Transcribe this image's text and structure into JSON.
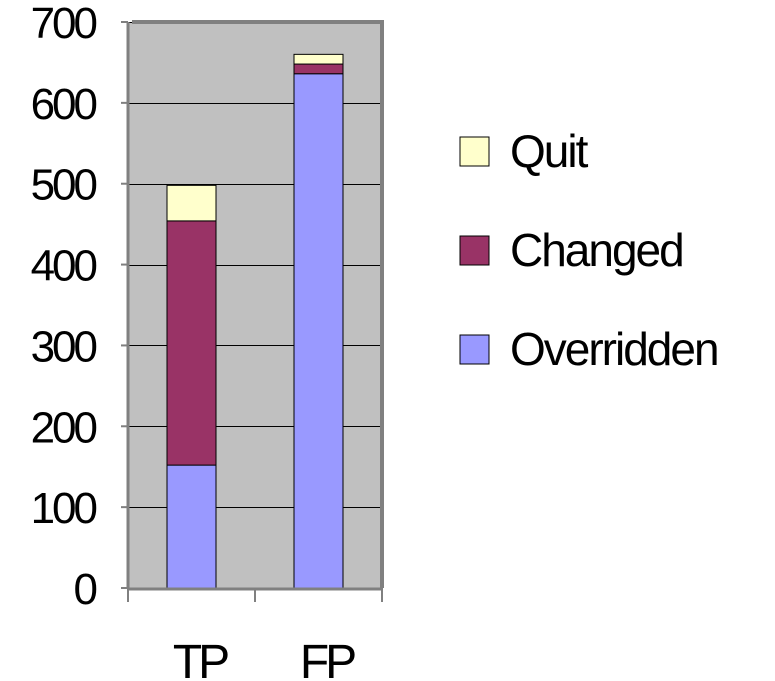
{
  "chart_data": {
    "type": "bar",
    "stacked": true,
    "title": "",
    "xlabel": "",
    "ylabel": "",
    "categories": [
      "TP",
      "FP"
    ],
    "series": [
      {
        "name": "Overridden",
        "values": [
          152,
          636
        ],
        "color": "#9999ff"
      },
      {
        "name": "Changed",
        "values": [
          302,
          12
        ],
        "color": "#993366"
      },
      {
        "name": "Quit",
        "values": [
          44,
          12
        ],
        "color": "#ffffcc"
      }
    ],
    "ylim": [
      0,
      700
    ],
    "yticks": [
      "0",
      "100",
      "200",
      "300",
      "400",
      "500",
      "600",
      "700"
    ],
    "grid": true,
    "plot_background": "#c0c0c0",
    "gridline_color": "#000000",
    "legend_position": "right",
    "legend_order": [
      "Quit",
      "Changed",
      "Overridden"
    ]
  }
}
